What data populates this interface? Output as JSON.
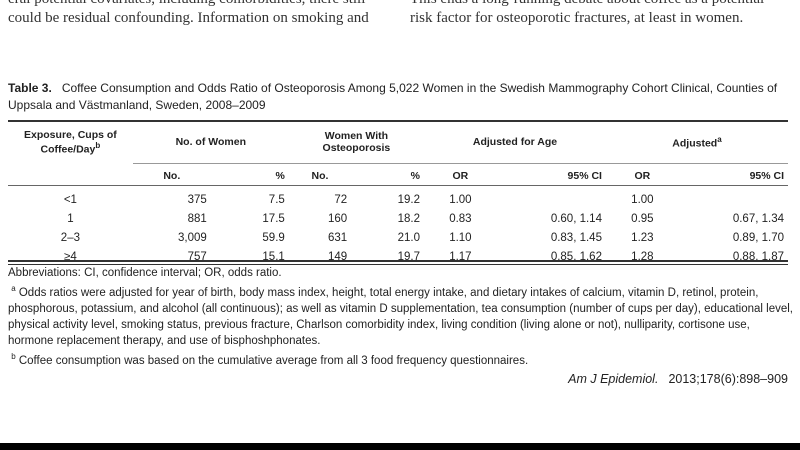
{
  "text": {
    "left_line1": "eral potential covariates, including comorbidities, there still",
    "left_line2": "could be residual confounding. Information on smoking and",
    "right_line1": "This ends a long-running debate about coffee as a potential",
    "right_line2": "risk factor for osteoporotic fractures, at least in women."
  },
  "caption": {
    "label": "Table 3.",
    "text": "Coffee Consumption and Odds Ratio of Osteoporosis Among 5,022 Women in the Swedish Mammography Cohort Clinical, Counties of Uppsala and Västmanland, Sweden, 2008–2009"
  },
  "table": {
    "h_exposure": "Exposure, Cups of Coffee/Day",
    "h_exposure_sup": "b",
    "h_women": "No. of Women",
    "h_osteo": "Women With Osteoporosis",
    "h_age": "Adjusted for Age",
    "h_adj": "Adjusted",
    "h_adj_sup": "a",
    "sub": [
      "No.",
      "%",
      "No.",
      "%",
      "OR",
      "95% CI",
      "OR",
      "95% CI"
    ],
    "rows": [
      [
        "<1",
        "375",
        "7.5",
        "72",
        "19.2",
        "1.00",
        "",
        "1.00",
        ""
      ],
      [
        "1",
        "881",
        "17.5",
        "160",
        "18.2",
        "0.83",
        "0.60, 1.14",
        "0.95",
        "0.67, 1.34"
      ],
      [
        "2–3",
        "3,009",
        "59.9",
        "631",
        "21.0",
        "1.10",
        "0.83, 1.45",
        "1.23",
        "0.89, 1.70"
      ],
      [
        "≥4",
        "757",
        "15.1",
        "149",
        "19.7",
        "1.17",
        "0.85, 1.62",
        "1.28",
        "0.88, 1.87"
      ]
    ]
  },
  "notes": {
    "abbr": "Abbreviations: CI, confidence interval; OR, odds ratio.",
    "a_sup": "a",
    "a": " Odds ratios were adjusted for year of birth, body mass index, height, total energy intake, and dietary intakes of calcium, vitamin D, retinol, protein, phosphorous, potassium, and alcohol (all continuous); as well as vitamin D supplementation, tea consumption (number of cups per day), educational level, physical activity level, smoking status, previous fracture, Charlson comorbidity index, living condition (living alone or not), nulliparity, cortisone use, hormone replacement therapy, and use of bisphoshphonates.",
    "b_sup": "b",
    "b": " Coffee consumption was based on the cumulative average from all 3 food frequency questionnaires."
  },
  "citation": {
    "journal": "Am J Epidemiol.",
    "ref": "2013;178(6):898–909"
  }
}
